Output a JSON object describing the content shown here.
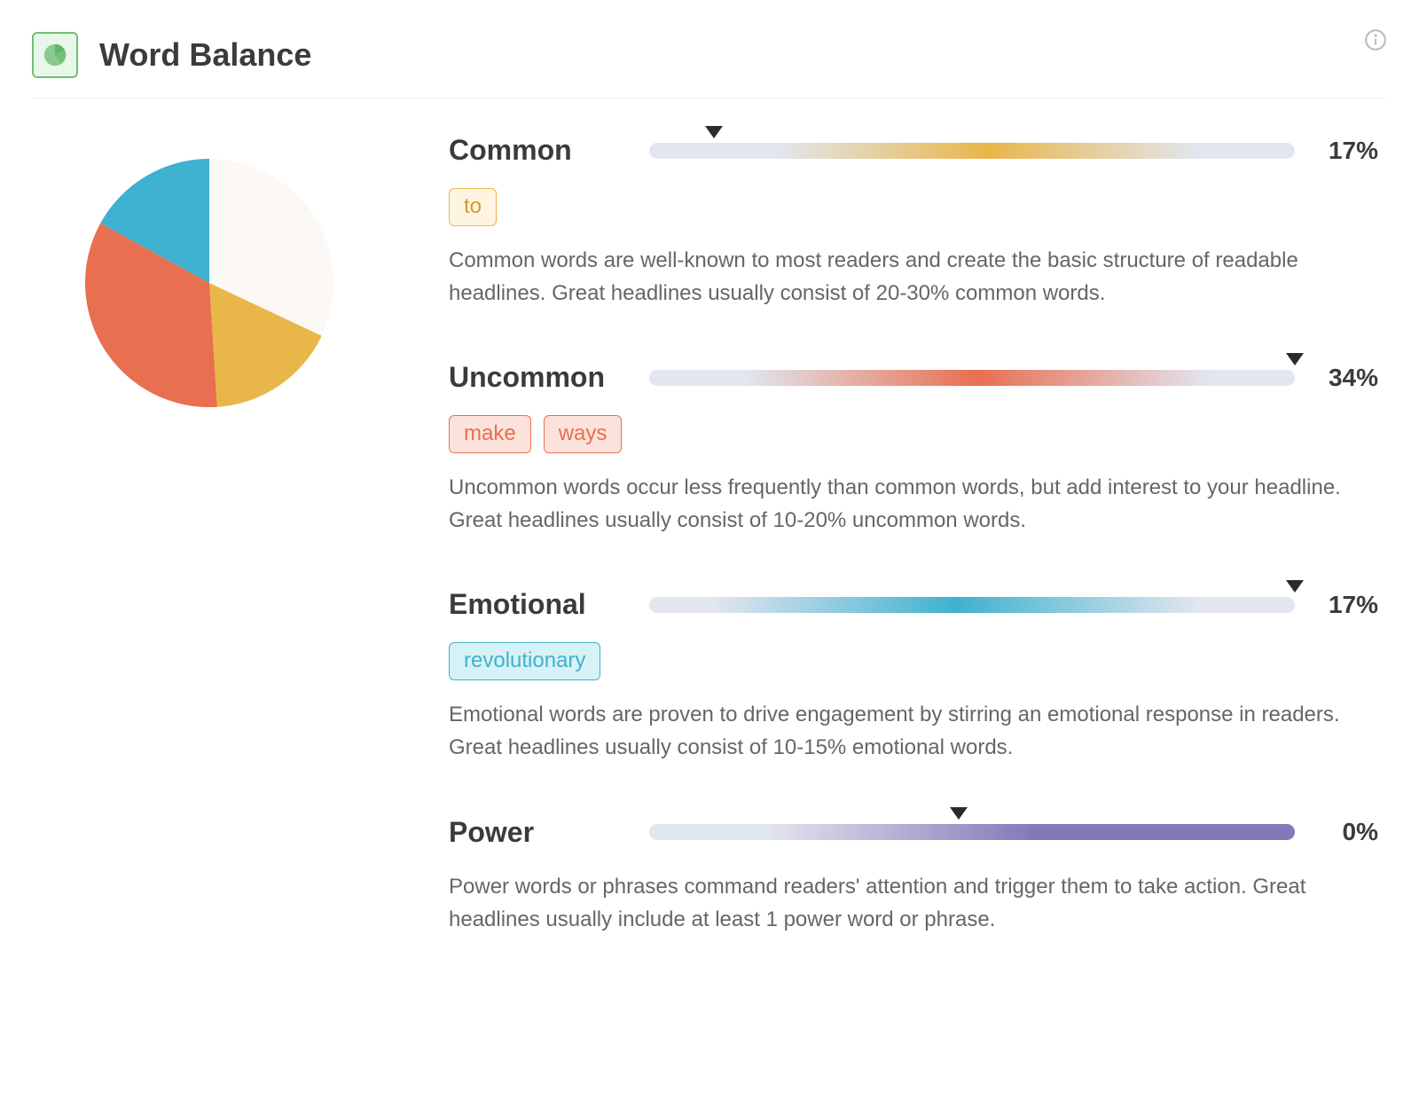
{
  "header": {
    "title": "Word Balance",
    "icon_color": "#5fb768",
    "icon_border": "#6fbf73",
    "icon_bg": "#e9f7ea"
  },
  "pie": {
    "size": 280,
    "rotation_deg": -90,
    "slices": [
      {
        "label": "other",
        "pct": 32,
        "color": "#fbf8f6"
      },
      {
        "label": "common",
        "pct": 17,
        "color": "#e9b64a"
      },
      {
        "label": "uncommon",
        "pct": 34,
        "color": "#e86f4f"
      },
      {
        "label": "emotional",
        "pct": 17,
        "color": "#3fb1d0"
      }
    ]
  },
  "categories": [
    {
      "key": "common",
      "title": "Common",
      "pct": "17%",
      "marker_pos_pct": 10,
      "gradient": {
        "base": "#e2e6ef",
        "accent": "#e9b64a",
        "start_pct": 25,
        "end_pct": 80
      },
      "tags": [
        "to"
      ],
      "tag_style": {
        "border": "#e9b64a",
        "bg": "#fdf4e1",
        "text": "#d39a2a"
      },
      "description": "Common words are well-known to most readers and create the basic structure of readable headlines. Great headlines usually consist of 20-30% common words."
    },
    {
      "key": "uncommon",
      "title": "Uncommon",
      "pct": "34%",
      "marker_pos_pct": 100,
      "gradient": {
        "base": "#e2e6ef",
        "accent": "#e86f4f",
        "start_pct": 20,
        "end_pct": 82
      },
      "tags": [
        "make",
        "ways"
      ],
      "tag_style": {
        "border": "#e86f4f",
        "bg": "#fbe3db",
        "text": "#e86f4f"
      },
      "description": "Uncommon words occur less frequently than common words, but add interest to your headline. Great headlines usually consist of 10-20% uncommon words."
    },
    {
      "key": "emotional",
      "title": "Emotional",
      "pct": "17%",
      "marker_pos_pct": 100,
      "gradient": {
        "base": "#e2e6ef",
        "accent": "#3fb1d0",
        "start_pct": 15,
        "end_pct": 80
      },
      "tags": [
        "revolutionary"
      ],
      "tag_style": {
        "border": "#3fb1d0",
        "bg": "#d7f2f6",
        "text": "#3fb1d0"
      },
      "description": "Emotional words are proven to drive engagement by stirring an emotional response in readers. Great headlines usually consist of 10-15% emotional words."
    },
    {
      "key": "power",
      "title": "Power",
      "pct": "0%",
      "marker_pos_pct": 48,
      "gradient": {
        "base": "#e2e6ef",
        "accent": "#8577b8",
        "start_pct": 18,
        "end_pct": 100,
        "hard_end": true
      },
      "tags": [],
      "tag_style": {
        "border": "#8577b8",
        "bg": "#eae6f4",
        "text": "#8577b8"
      },
      "description": "Power words or phrases command readers' attention and trigger them to take action. Great headlines usually include at least 1 power word or phrase."
    }
  ]
}
